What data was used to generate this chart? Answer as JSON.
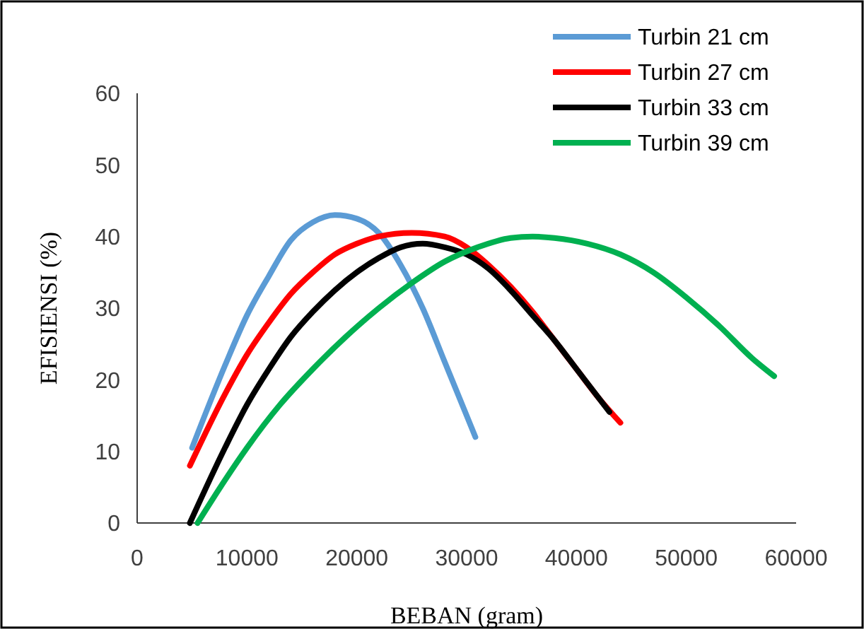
{
  "chart_data": {
    "type": "line",
    "xlabel": "BEBAN (gram)",
    "ylabel": "EFISIENSI (%)",
    "xlim": [
      0,
      60000
    ],
    "xticks": [
      0,
      10000,
      20000,
      30000,
      40000,
      50000,
      60000
    ],
    "ylim": [
      0,
      60
    ],
    "yticks": [
      0,
      10,
      20,
      30,
      40,
      50,
      60
    ],
    "grid": false,
    "legend": "top right",
    "marker": "none",
    "line_style": "solid",
    "series": [
      {
        "name": "Turbin 21 cm",
        "color": "#5b9bd5",
        "x": [
          5000,
          8000,
          10000,
          12000,
          14000,
          16000,
          18000,
          20000,
          22000,
          24000,
          26000,
          28000,
          30000,
          30800
        ],
        "values": [
          10.5,
          22,
          29,
          34.5,
          39.5,
          42,
          43,
          42.5,
          40.5,
          36,
          30,
          22.5,
          15,
          12
        ]
      },
      {
        "name": "Turbin 27 cm",
        "color": "#ff0000",
        "x": [
          4800,
          8000,
          10000,
          12000,
          14000,
          16000,
          18000,
          20000,
          22000,
          25000,
          28000,
          30000,
          32000,
          34000,
          36000,
          38000,
          40000,
          42000,
          44000
        ],
        "values": [
          8,
          18,
          23.5,
          28,
          32,
          35,
          37.5,
          39,
          40,
          40.5,
          40,
          38.5,
          36,
          33,
          29.5,
          25.5,
          21.5,
          17.5,
          14
        ]
      },
      {
        "name": "Turbin 33 cm",
        "color": "#000000",
        "x": [
          4800,
          8000,
          10000,
          12000,
          14000,
          16000,
          18000,
          20000,
          22000,
          24000,
          26000,
          28000,
          30000,
          32000,
          34000,
          36000,
          38000,
          40000,
          43000
        ],
        "values": [
          0,
          10.5,
          16.5,
          21.5,
          26,
          29.5,
          32.5,
          35,
          37,
          38.5,
          39,
          38.5,
          37.5,
          35.5,
          32.5,
          29,
          25.5,
          21.5,
          15.5
        ]
      },
      {
        "name": "Turbin 39 cm",
        "color": "#00b050",
        "x": [
          5500,
          8000,
          10000,
          13000,
          16000,
          19000,
          22000,
          25000,
          28000,
          31000,
          34000,
          36000,
          38000,
          41000,
          44000,
          47000,
          50000,
          53000,
          56000,
          58000
        ],
        "values": [
          0,
          6,
          10.5,
          16.5,
          21.5,
          26,
          30,
          33.5,
          36.5,
          38.5,
          39.8,
          40,
          39.8,
          39,
          37.5,
          35,
          31.5,
          27.5,
          23,
          20.5
        ]
      }
    ]
  }
}
